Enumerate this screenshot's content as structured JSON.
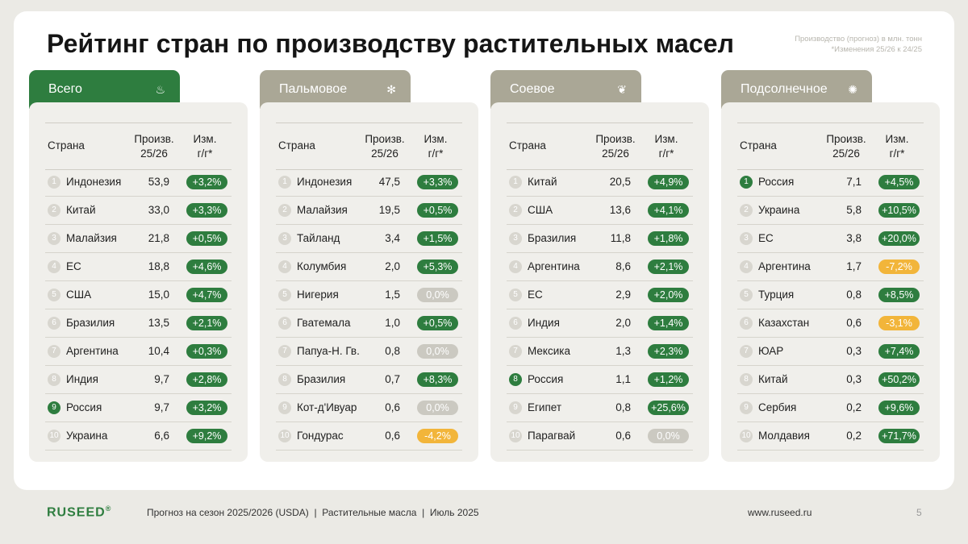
{
  "title": "Рейтинг стран по производству растительных масел",
  "note": {
    "line1": "Производство (прогноз) в млн. тонн",
    "line2": "*Изменения 25/26 к 24/25"
  },
  "colors": {
    "accent": "#2e7d3f",
    "tab_inactive": "#aaa796",
    "negative": "#f2b53a",
    "zero": "#cbc9c1"
  },
  "columns": {
    "country": "Страна",
    "prod_line1": "Произв.",
    "prod_line2": "25/26",
    "chg_line1": "Изм.",
    "chg_line2": "г/г*"
  },
  "cards": [
    {
      "label": "Всего",
      "icon": "oil-bottle-icon",
      "icon_glyph": "♨",
      "active": true,
      "rows": [
        {
          "rank": "1",
          "country": "Индонезия",
          "value": "53,9",
          "change": "+3,2%",
          "kind": "pos",
          "highlight": false
        },
        {
          "rank": "2",
          "country": "Китай",
          "value": "33,0",
          "change": "+3,3%",
          "kind": "pos",
          "highlight": false
        },
        {
          "rank": "3",
          "country": "Малайзия",
          "value": "21,8",
          "change": "+0,5%",
          "kind": "pos",
          "highlight": false
        },
        {
          "rank": "4",
          "country": "ЕС",
          "value": "18,8",
          "change": "+4,6%",
          "kind": "pos",
          "highlight": false
        },
        {
          "rank": "5",
          "country": "США",
          "value": "15,0",
          "change": "+4,7%",
          "kind": "pos",
          "highlight": false
        },
        {
          "rank": "6",
          "country": "Бразилия",
          "value": "13,5",
          "change": "+2,1%",
          "kind": "pos",
          "highlight": false
        },
        {
          "rank": "7",
          "country": "Аргентина",
          "value": "10,4",
          "change": "+0,3%",
          "kind": "pos",
          "highlight": false
        },
        {
          "rank": "8",
          "country": "Индия",
          "value": "9,7",
          "change": "+2,8%",
          "kind": "pos",
          "highlight": false
        },
        {
          "rank": "9",
          "country": "Россия",
          "value": "9,7",
          "change": "+3,2%",
          "kind": "pos",
          "highlight": true
        },
        {
          "rank": "10",
          "country": "Украина",
          "value": "6,6",
          "change": "+9,2%",
          "kind": "pos",
          "highlight": false
        }
      ]
    },
    {
      "label": "Пальмовое",
      "icon": "palm-icon",
      "icon_glyph": "✻",
      "active": false,
      "rows": [
        {
          "rank": "1",
          "country": "Индонезия",
          "value": "47,5",
          "change": "+3,3%",
          "kind": "pos",
          "highlight": false
        },
        {
          "rank": "2",
          "country": "Малайзия",
          "value": "19,5",
          "change": "+0,5%",
          "kind": "pos",
          "highlight": false
        },
        {
          "rank": "3",
          "country": "Тайланд",
          "value": "3,4",
          "change": "+1,5%",
          "kind": "pos",
          "highlight": false
        },
        {
          "rank": "4",
          "country": "Колумбия",
          "value": "2,0",
          "change": "+5,3%",
          "kind": "pos",
          "highlight": false
        },
        {
          "rank": "5",
          "country": "Нигерия",
          "value": "1,5",
          "change": "0,0%",
          "kind": "zero",
          "highlight": false
        },
        {
          "rank": "6",
          "country": "Гватемала",
          "value": "1,0",
          "change": "+0,5%",
          "kind": "pos",
          "highlight": false
        },
        {
          "rank": "7",
          "country": "Папуа-Н. Гв.",
          "value": "0,8",
          "change": "0,0%",
          "kind": "zero",
          "highlight": false
        },
        {
          "rank": "8",
          "country": "Бразилия",
          "value": "0,7",
          "change": "+8,3%",
          "kind": "pos",
          "highlight": false
        },
        {
          "rank": "9",
          "country": "Кот-д'Ивуар",
          "value": "0,6",
          "change": "0,0%",
          "kind": "zero",
          "highlight": false
        },
        {
          "rank": "10",
          "country": "Гондурас",
          "value": "0,6",
          "change": "-4,2%",
          "kind": "neg",
          "highlight": false
        }
      ]
    },
    {
      "label": "Соевое",
      "icon": "soybean-icon",
      "icon_glyph": "❦",
      "active": false,
      "rows": [
        {
          "rank": "1",
          "country": "Китай",
          "value": "20,5",
          "change": "+4,9%",
          "kind": "pos",
          "highlight": false
        },
        {
          "rank": "2",
          "country": "США",
          "value": "13,6",
          "change": "+4,1%",
          "kind": "pos",
          "highlight": false
        },
        {
          "rank": "3",
          "country": "Бразилия",
          "value": "11,8",
          "change": "+1,8%",
          "kind": "pos",
          "highlight": false
        },
        {
          "rank": "4",
          "country": "Аргентина",
          "value": "8,6",
          "change": "+2,1%",
          "kind": "pos",
          "highlight": false
        },
        {
          "rank": "5",
          "country": "ЕС",
          "value": "2,9",
          "change": "+2,0%",
          "kind": "pos",
          "highlight": false
        },
        {
          "rank": "6",
          "country": "Индия",
          "value": "2,0",
          "change": "+1,4%",
          "kind": "pos",
          "highlight": false
        },
        {
          "rank": "7",
          "country": "Мексика",
          "value": "1,3",
          "change": "+2,3%",
          "kind": "pos",
          "highlight": false
        },
        {
          "rank": "8",
          "country": "Россия",
          "value": "1,1",
          "change": "+1,2%",
          "kind": "pos",
          "highlight": true
        },
        {
          "rank": "9",
          "country": "Египет",
          "value": "0,8",
          "change": "+25,6%",
          "kind": "pos",
          "highlight": false
        },
        {
          "rank": "10",
          "country": "Парагвай",
          "value": "0,6",
          "change": "0,0%",
          "kind": "zero",
          "highlight": false
        }
      ]
    },
    {
      "label": "Подсолнечное",
      "icon": "sunflower-icon",
      "icon_glyph": "✺",
      "active": false,
      "rows": [
        {
          "rank": "1",
          "country": "Россия",
          "value": "7,1",
          "change": "+4,5%",
          "kind": "pos",
          "highlight": true
        },
        {
          "rank": "2",
          "country": "Украина",
          "value": "5,8",
          "change": "+10,5%",
          "kind": "pos",
          "highlight": false
        },
        {
          "rank": "3",
          "country": "ЕС",
          "value": "3,8",
          "change": "+20,0%",
          "kind": "pos",
          "highlight": false
        },
        {
          "rank": "4",
          "country": "Аргентина",
          "value": "1,7",
          "change": "-7,2%",
          "kind": "neg",
          "highlight": false
        },
        {
          "rank": "5",
          "country": "Турция",
          "value": "0,8",
          "change": "+8,5%",
          "kind": "pos",
          "highlight": false
        },
        {
          "rank": "6",
          "country": "Казахстан",
          "value": "0,6",
          "change": "-3,1%",
          "kind": "neg",
          "highlight": false
        },
        {
          "rank": "7",
          "country": "ЮАР",
          "value": "0,3",
          "change": "+7,4%",
          "kind": "pos",
          "highlight": false
        },
        {
          "rank": "8",
          "country": "Китай",
          "value": "0,3",
          "change": "+50,2%",
          "kind": "pos",
          "highlight": false
        },
        {
          "rank": "9",
          "country": "Сербия",
          "value": "0,2",
          "change": "+9,6%",
          "kind": "pos",
          "highlight": false
        },
        {
          "rank": "10",
          "country": "Молдавия",
          "value": "0,2",
          "change": "+71,7%",
          "kind": "pos",
          "highlight": false
        }
      ]
    }
  ],
  "footer": {
    "brand": "RUSEED",
    "brand_mark": "®",
    "text": "Прогноз на сезон 2025/2026 (USDA)  |  Растительные масла  |  Июль 2025",
    "url": "www.ruseed.ru",
    "page": "5"
  }
}
